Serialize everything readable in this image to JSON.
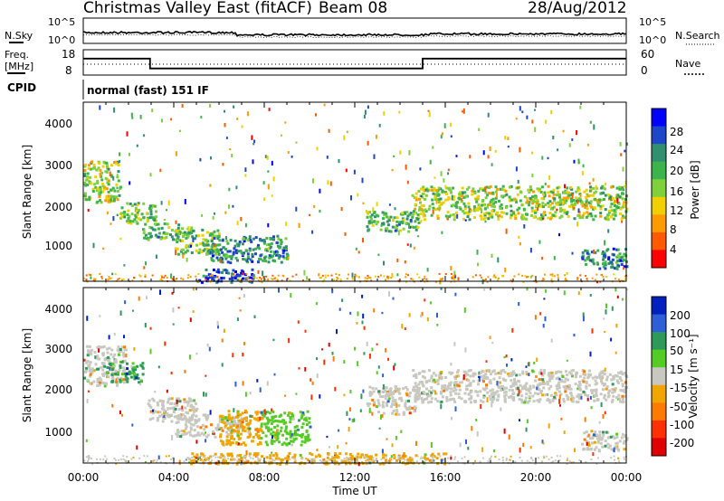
{
  "header": {
    "title": "Christmas Valley East (fitACF)",
    "beam": "Beam 08",
    "date": "28/Aug/2012"
  },
  "strips": {
    "nsky_label": "N.Sky",
    "nsearch_label": "N.Search",
    "noise_ticks": [
      "10^5",
      "10^0"
    ],
    "freq_label": "Freq.",
    "freq_unit": "[MHz]",
    "freq_ticks": [
      "18",
      "8"
    ],
    "nave_label": "Nave",
    "nave_ticks": [
      "60",
      "0"
    ],
    "cpid_label": "CPID",
    "cpid_text": "normal (fast) 151 IF",
    "freq_series": {
      "x_hours": [
        0,
        2.95,
        2.95,
        15.0,
        15.0,
        24
      ],
      "freq_mhz": [
        14.5,
        14.5,
        10.6,
        10.6,
        14.5,
        14.5
      ]
    }
  },
  "xaxis": {
    "label": "Time UT",
    "ticks": [
      "00:00",
      "04:00",
      "08:00",
      "12:00",
      "16:00",
      "20:00",
      "00:00"
    ],
    "range_hours": [
      0,
      24
    ]
  },
  "power_panel": {
    "ylabel": "Slant Range [km]",
    "yticks": [
      "4000",
      "3000",
      "2000",
      "1000"
    ],
    "colorbar_label": "Power [dB]",
    "colorbar_ticks": [
      "28",
      "24",
      "20",
      "16",
      "12",
      "8",
      "4"
    ],
    "colors": [
      "#0000ff",
      "#1e46c8",
      "#2f8f6e",
      "#3cb44b",
      "#7fd13b",
      "#f0d000",
      "#ff9a00",
      "#ff5a00",
      "#ff0000"
    ]
  },
  "velocity_panel": {
    "ylabel": "Slant Range [km]",
    "yticks": [
      "4000",
      "3000",
      "2000",
      "1000"
    ],
    "colorbar_label": "Velocity [m s⁻¹]",
    "colorbar_ticks": [
      "200",
      "100",
      "50",
      "15",
      "-15",
      "-50",
      "-100",
      "-200"
    ],
    "colors": [
      "#0020c0",
      "#2e5fd8",
      "#2e9a5a",
      "#55cc22",
      "#c8c8c0",
      "#f0a500",
      "#ff7a00",
      "#ff3000",
      "#e00000"
    ]
  },
  "chart_data": [
    {
      "type": "heatmap",
      "title": "Power",
      "xlabel": "Time UT",
      "ylabel": "Slant Range [km]",
      "xlim": [
        0,
        24
      ],
      "ylim": [
        180,
        4500
      ],
      "colorbar": {
        "label": "Power [dB]",
        "range": [
          0,
          32
        ]
      },
      "regions": [
        {
          "t": [
            0.0,
            1.6
          ],
          "r": [
            2100,
            3100
          ],
          "value": 16
        },
        {
          "t": [
            1.6,
            3.2
          ],
          "r": [
            1600,
            2100
          ],
          "value": 18
        },
        {
          "t": [
            2.6,
            4.2
          ],
          "r": [
            1200,
            1600
          ],
          "value": 20
        },
        {
          "t": [
            4.0,
            6.0
          ],
          "r": [
            850,
            1500
          ],
          "value": 18
        },
        {
          "t": [
            5.6,
            9.0
          ],
          "r": [
            650,
            1300
          ],
          "value": 24
        },
        {
          "t": [
            5.0,
            7.5
          ],
          "r": [
            180,
            500
          ],
          "value": 28
        },
        {
          "t": [
            12.5,
            14.8
          ],
          "r": [
            1400,
            1900
          ],
          "value": 20
        },
        {
          "t": [
            14.5,
            24.0
          ],
          "r": [
            1700,
            2500
          ],
          "value": 16
        },
        {
          "t": [
            22.0,
            24.0
          ],
          "r": [
            500,
            1000
          ],
          "value": 24
        }
      ]
    },
    {
      "type": "heatmap",
      "title": "Velocity",
      "xlabel": "Time UT",
      "ylabel": "Slant Range [km]",
      "xlim": [
        0,
        24
      ],
      "ylim": [
        180,
        4500
      ],
      "colorbar": {
        "label": "Velocity [m s⁻¹]",
        "range": [
          -200,
          200
        ]
      },
      "regions": [
        {
          "t": [
            0.0,
            1.8
          ],
          "r": [
            2100,
            3100
          ],
          "value": 0
        },
        {
          "t": [
            1.0,
            2.6
          ],
          "r": [
            2200,
            2700
          ],
          "value": 80
        },
        {
          "t": [
            2.8,
            5.0
          ],
          "r": [
            1200,
            1800
          ],
          "value": 0
        },
        {
          "t": [
            4.0,
            7.0
          ],
          "r": [
            850,
            1400
          ],
          "value": 0
        },
        {
          "t": [
            6.0,
            7.8
          ],
          "r": [
            650,
            1500
          ],
          "value": -40
        },
        {
          "t": [
            7.8,
            10.0
          ],
          "r": [
            650,
            1500
          ],
          "value": 40
        },
        {
          "t": [
            4.5,
            16.0
          ],
          "r": [
            180,
            450
          ],
          "value": -40
        },
        {
          "t": [
            12.5,
            14.8
          ],
          "r": [
            1400,
            2100
          ],
          "value": 0
        },
        {
          "t": [
            14.5,
            24.0
          ],
          "r": [
            1700,
            2500
          ],
          "value": 0
        },
        {
          "t": [
            22.0,
            24.0
          ],
          "r": [
            500,
            1000
          ],
          "value": 0
        }
      ]
    }
  ]
}
